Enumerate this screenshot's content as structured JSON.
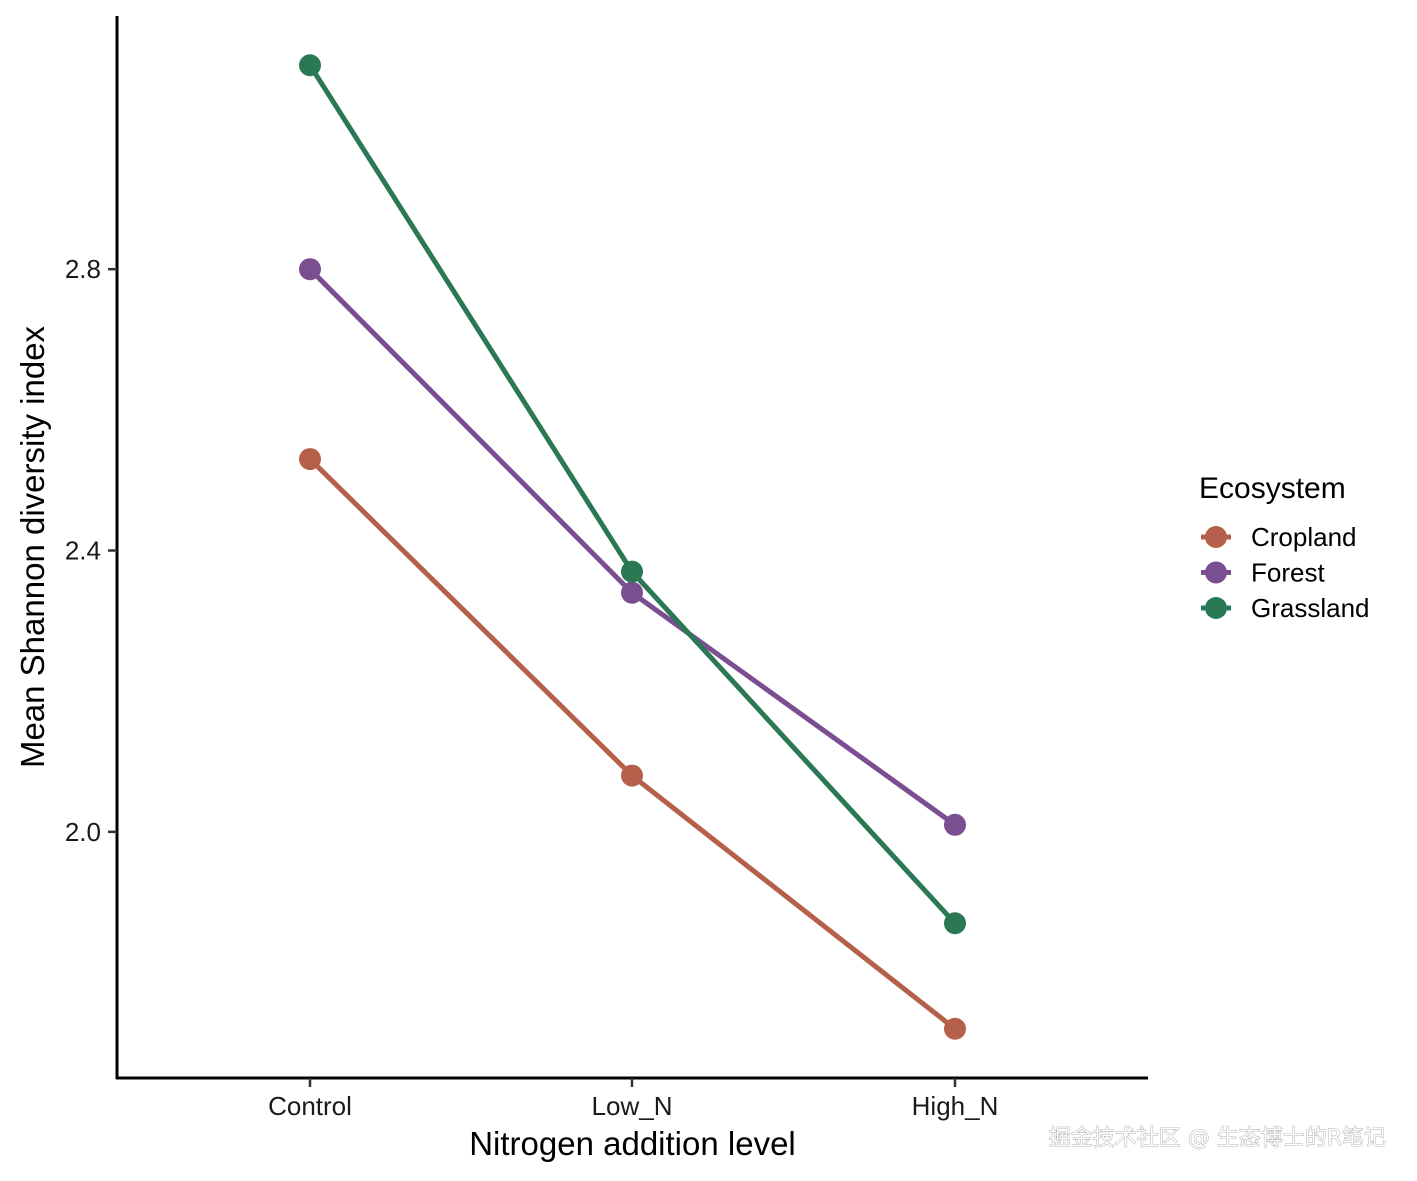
{
  "chart_data": {
    "type": "line",
    "title": "",
    "xlabel": "Nitrogen addition level",
    "ylabel": "Mean Shannon diversity index",
    "categories": [
      "Control",
      "Low_N",
      "High_N"
    ],
    "ylim": [
      1.65,
      3.16
    ],
    "yticks": [
      2.0,
      2.4,
      2.8
    ],
    "ytick_labels": [
      "2.0",
      "2.4",
      "2.8"
    ],
    "grid": false,
    "legend_title": "Ecosystem",
    "legend_position": "right",
    "series": [
      {
        "name": "Cropland",
        "color": "#B5604A",
        "values": [
          2.53,
          2.08,
          1.72
        ]
      },
      {
        "name": "Forest",
        "color": "#7A4E91",
        "values": [
          2.8,
          2.34,
          2.01
        ]
      },
      {
        "name": "Grassland",
        "color": "#2B7855",
        "values": [
          3.09,
          2.37,
          1.87
        ]
      }
    ]
  },
  "watermark": "掘金技术社区 @ 生态博士的R笔记"
}
